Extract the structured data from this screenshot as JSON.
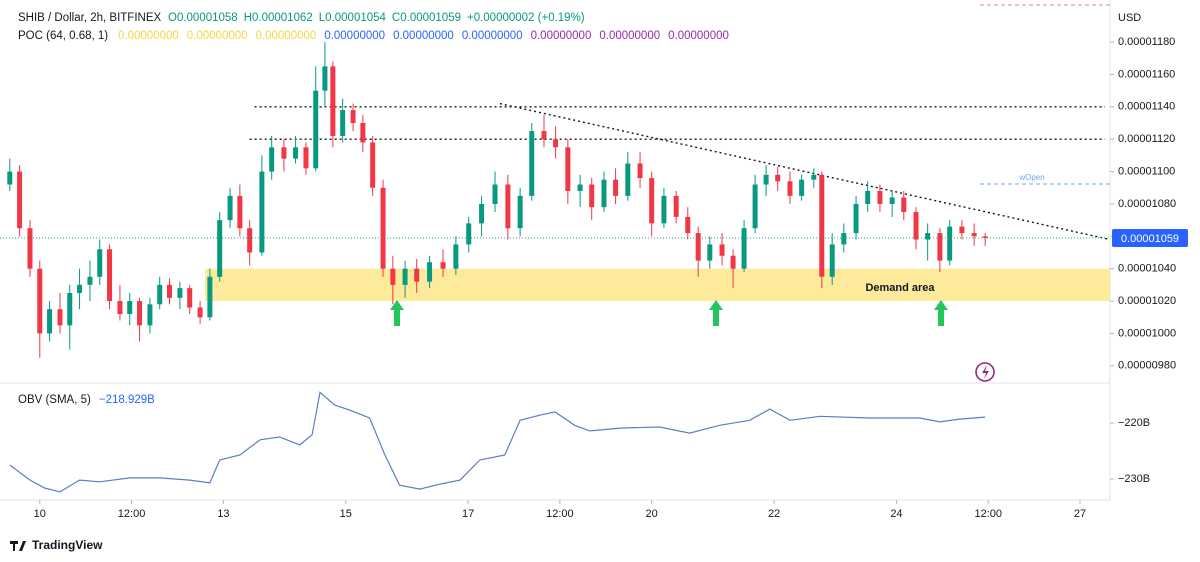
{
  "header": {
    "title": "SHIB / Dollar, 2h, BITFINEX",
    "ohlc": [
      "O0.00001058",
      "H0.00001062",
      "L0.00001054",
      "C0.00001059",
      "+0.00000002 (+0.19%)"
    ],
    "poc_title": "POC (64, 0.68, 1)",
    "poc_values": [
      {
        "text": "0.00000000",
        "color": "#f5d742"
      },
      {
        "text": "0.00000000",
        "color": "#f5d742"
      },
      {
        "text": "0.00000000",
        "color": "#f5d742"
      },
      {
        "text": "0.00000000",
        "color": "#2962ff"
      },
      {
        "text": "0.00000000",
        "color": "#2962ff"
      },
      {
        "text": "0.00000000",
        "color": "#2962ff"
      },
      {
        "text": "0.00000000",
        "color": "#9c27b0"
      },
      {
        "text": "0.00000000",
        "color": "#9c27b0"
      },
      {
        "text": "0.00000000",
        "color": "#9c27b0"
      }
    ],
    "currency": "USD",
    "wopen": "wOpen"
  },
  "footer": {
    "brand": "TradingView"
  },
  "chart_data": [
    {
      "type": "candlestick",
      "up_color": "#089981",
      "down_color": "#f23645",
      "x": [
        9.51,
        9.67,
        9.84,
        10,
        10.16,
        10.33,
        10.49,
        10.65,
        10.82,
        10.98,
        11.14,
        11.31,
        11.47,
        11.63,
        11.8,
        11.96,
        12.12,
        12.29,
        12.45,
        12.62,
        12.78,
        12.94,
        13.11,
        13.27,
        13.43,
        13.63,
        13.79,
        13.99,
        14.18,
        14.35,
        14.51,
        14.66,
        14.79,
        14.95,
        15.12,
        15.28,
        15.44,
        15.61,
        15.77,
        15.97,
        16.16,
        16.37,
        16.59,
        16.8,
        17.01,
        17.22,
        17.44,
        17.65,
        17.85,
        18.04,
        18.24,
        18.43,
        18.63,
        18.83,
        19.02,
        19.22,
        19.41,
        19.61,
        19.81,
        20,
        20.2,
        20.4,
        20.59,
        20.76,
        20.95,
        21.15,
        21.33,
        21.51,
        21.69,
        21.87,
        22.06,
        22.26,
        22.45,
        22.65,
        22.78,
        22.95,
        23.14,
        23.34,
        23.53,
        23.73,
        23.93,
        24.12,
        24.32,
        24.51,
        24.71,
        24.87,
        25.07,
        25.27,
        25.45
      ],
      "open": [
        1.092e-05,
        1.1e-05,
        1.065e-05,
        1.04e-05,
        1e-05,
        1.015e-05,
        1.005e-05,
        1.025e-05,
        1.03e-05,
        1.035e-05,
        1.052e-05,
        1.02e-05,
        1.012e-05,
        1.02e-05,
        1.005e-05,
        1.018e-05,
        1.03e-05,
        1.022e-05,
        1.028e-05,
        1.016e-05,
        1.01e-05,
        1.035e-05,
        1.07e-05,
        1.085e-05,
        1.065e-05,
        1.05e-05,
        1.1e-05,
        1.115e-05,
        1.108e-05,
        1.115e-05,
        1.102e-05,
        1.15e-05,
        1.165e-05,
        1.122e-05,
        1.138e-05,
        1.13e-05,
        1.118e-05,
        1.09e-05,
        1.04e-05,
        1.03e-05,
        1.04e-05,
        1.032e-05,
        1.044e-05,
        1.04e-05,
        1.055e-05,
        1.068e-05,
        1.08e-05,
        1.092e-05,
        1.065e-05,
        1.085e-05,
        1.125e-05,
        1.12e-05,
        1.115e-05,
        1.088e-05,
        1.092e-05,
        1.078e-05,
        1.095e-05,
        1.085e-05,
        1.105e-05,
        1.096e-05,
        1.068e-05,
        1.085e-05,
        1.072e-05,
        1.062e-05,
        1.045e-05,
        1.055e-05,
        1.048e-05,
        1.04e-05,
        1.065e-05,
        1.092e-05,
        1.098e-05,
        1.094e-05,
        1.085e-05,
        1.095e-05,
        1.098e-05,
        1.035e-05,
        1.055e-05,
        1.062e-05,
        1.08e-05,
        1.088e-05,
        1.08e-05,
        1.084e-05,
        1.075e-05,
        1.058e-05,
        1.062e-05,
        1.045e-05,
        1.066e-05,
        1.062e-05,
        1.06e-05
      ],
      "high": [
        1.108e-05,
        1.104e-05,
        1.07e-05,
        1.045e-05,
        1.02e-05,
        1.025e-05,
        1.03e-05,
        1.04e-05,
        1.045e-05,
        1.058e-05,
        1.055e-05,
        1.03e-05,
        1.025e-05,
        1.022e-05,
        1.022e-05,
        1.035e-05,
        1.034e-05,
        1.032e-05,
        1.03e-05,
        1.02e-05,
        1.04e-05,
        1.075e-05,
        1.09e-05,
        1.092e-05,
        1.07e-05,
        1.11e-05,
        1.122e-05,
        1.12e-05,
        1.122e-05,
        1.118e-05,
        1.165e-05,
        1.18e-05,
        1.168e-05,
        1.145e-05,
        1.142e-05,
        1.135e-05,
        1.122e-05,
        1.095e-05,
        1.048e-05,
        1.045e-05,
        1.046e-05,
        1.048e-05,
        1.052e-05,
        1.06e-05,
        1.072e-05,
        1.085e-05,
        1.1e-05,
        1.098e-05,
        1.09e-05,
        1.13e-05,
        1.135e-05,
        1.128e-05,
        1.12e-05,
        1.098e-05,
        1.096e-05,
        1.1e-05,
        1.102e-05,
        1.112e-05,
        1.112e-05,
        1.1e-05,
        1.09e-05,
        1.088e-05,
        1.078e-05,
        1.066e-05,
        1.06e-05,
        1.062e-05,
        1.052e-05,
        1.07e-05,
        1.098e-05,
        1.104e-05,
        1.103e-05,
        1.1e-05,
        1.098e-05,
        1.102e-05,
        1.1e-05,
        1.062e-05,
        1.068e-05,
        1.085e-05,
        1.094e-05,
        1.092e-05,
        1.088e-05,
        1.088e-05,
        1.078e-05,
        1.068e-05,
        1.065e-05,
        1.07e-05,
        1.07e-05,
        1.068e-05,
        1.062e-05
      ],
      "low": [
        1.088e-05,
        1.06e-05,
        1.035e-05,
        9.85e-06,
        9.95e-06,
        1e-05,
        9.9e-06,
        1.015e-05,
        1.02e-05,
        1.03e-05,
        1.015e-05,
        1.008e-05,
        1.005e-05,
        9.95e-06,
        1e-05,
        1.015e-05,
        1.018e-05,
        1.015e-05,
        1.012e-05,
        1.006e-05,
        1.008e-05,
        1.032e-05,
        1.065e-05,
        1.06e-05,
        1.042e-05,
        1.048e-05,
        1.095e-05,
        1.1e-05,
        1.105e-05,
        1.098e-05,
        1.1e-05,
        1.14e-05,
        1.115e-05,
        1.118e-05,
        1.125e-05,
        1.112e-05,
        1.085e-05,
        1.035e-05,
        1.018e-05,
        1.022e-05,
        1.025e-05,
        1.028e-05,
        1.035e-05,
        1.036e-05,
        1.05e-05,
        1.06e-05,
        1.075e-05,
        1.058e-05,
        1.06e-05,
        1.082e-05,
        1.115e-05,
        1.108e-05,
        1.08e-05,
        1.078e-05,
        1.07e-05,
        1.075e-05,
        1.08e-05,
        1.082e-05,
        1.09e-05,
        1.06e-05,
        1.065e-05,
        1.068e-05,
        1.058e-05,
        1.035e-05,
        1.04e-05,
        1.042e-05,
        1.028e-05,
        1.038e-05,
        1.062e-05,
        1.085e-05,
        1.088e-05,
        1.08e-05,
        1.082e-05,
        1.09e-05,
        1.028e-05,
        1.03e-05,
        1.05e-05,
        1.058e-05,
        1.075e-05,
        1.075e-05,
        1.072e-05,
        1.07e-05,
        1.052e-05,
        1.045e-05,
        1.038e-05,
        1.042e-05,
        1.058e-05,
        1.054e-05,
        1.054e-05
      ],
      "close": [
        1.1e-05,
        1.065e-05,
        1.04e-05,
        1e-05,
        1.015e-05,
        1.005e-05,
        1.025e-05,
        1.03e-05,
        1.035e-05,
        1.052e-05,
        1.02e-05,
        1.012e-05,
        1.02e-05,
        1.005e-05,
        1.018e-05,
        1.03e-05,
        1.022e-05,
        1.028e-05,
        1.016e-05,
        1.01e-05,
        1.035e-05,
        1.07e-05,
        1.085e-05,
        1.065e-05,
        1.05e-05,
        1.1e-05,
        1.115e-05,
        1.108e-05,
        1.115e-05,
        1.102e-05,
        1.15e-05,
        1.165e-05,
        1.122e-05,
        1.138e-05,
        1.13e-05,
        1.118e-05,
        1.09e-05,
        1.04e-05,
        1.03e-05,
        1.04e-05,
        1.032e-05,
        1.044e-05,
        1.04e-05,
        1.055e-05,
        1.068e-05,
        1.08e-05,
        1.092e-05,
        1.065e-05,
        1.085e-05,
        1.125e-05,
        1.12e-05,
        1.115e-05,
        1.088e-05,
        1.092e-05,
        1.078e-05,
        1.095e-05,
        1.085e-05,
        1.105e-05,
        1.096e-05,
        1.068e-05,
        1.085e-05,
        1.072e-05,
        1.062e-05,
        1.045e-05,
        1.055e-05,
        1.048e-05,
        1.04e-05,
        1.065e-05,
        1.092e-05,
        1.098e-05,
        1.094e-05,
        1.085e-05,
        1.095e-05,
        1.098e-05,
        1.035e-05,
        1.055e-05,
        1.062e-05,
        1.08e-05,
        1.088e-05,
        1.08e-05,
        1.084e-05,
        1.075e-05,
        1.058e-05,
        1.062e-05,
        1.045e-05,
        1.066e-05,
        1.062e-05,
        1.06e-05,
        1.059e-05
      ],
      "xlim": [
        9.35,
        27.49
      ],
      "xticks": [
        10,
        {
          "value": 11.5,
          "label": "12:00"
        },
        13,
        15,
        17,
        {
          "value": 18.5,
          "label": "12:00"
        },
        20,
        22,
        24,
        {
          "value": 25.5,
          "label": "12:00"
        },
        27
      ],
      "ylim": [
        9.7e-06,
        1.206e-05
      ],
      "yticks": [
        {
          "value": 9.8e-06,
          "label": "0.00000980"
        },
        {
          "value": 1e-05,
          "label": "0.00001000"
        },
        {
          "value": 1.02e-05,
          "label": "0.00001020"
        },
        {
          "value": 1.04e-05,
          "label": "0.00001040"
        },
        {
          "value": 1.06e-05,
          "label": "0.00001060"
        },
        {
          "value": 1.08e-05,
          "label": "0.00001080"
        },
        {
          "value": 1.1e-05,
          "label": "0.00001100"
        },
        {
          "value": 1.12e-05,
          "label": "0.00001120"
        },
        {
          "value": 1.14e-05,
          "label": "0.00001140"
        },
        {
          "value": 1.16e-05,
          "label": "0.00001160"
        },
        {
          "value": 1.18e-05,
          "label": "0.00001180"
        }
      ],
      "grid": false,
      "last_price": {
        "value": 1.059e-05,
        "label": "0.00001059"
      },
      "levels": [
        {
          "value": 1.14e-05,
          "start": 13.51
        },
        {
          "value": 1.12e-05,
          "start": 13.43
        }
      ],
      "trendline": {
        "x": [
          17.52,
          27.49
        ],
        "y": [
          1.142e-05,
          1.058e-05
        ]
      },
      "demand_area": {
        "label": "Demand area",
        "start": 12.7,
        "low": 1.02e-05,
        "high": 1.04e-05
      }
    },
    {
      "type": "line",
      "title": "OBV (SMA, 5)",
      "color": "#5b7fc4",
      "last_value": {
        "value": -218.929,
        "label": "−218.929B"
      },
      "x": [
        9.51,
        9.84,
        10.08,
        10.33,
        10.65,
        10.98,
        11.47,
        11.96,
        12.45,
        12.78,
        12.94,
        13.27,
        13.6,
        13.92,
        14.25,
        14.45,
        14.58,
        14.82,
        15.07,
        15.39,
        15.64,
        15.88,
        16.21,
        16.54,
        16.87,
        17.19,
        17.6,
        17.85,
        18.17,
        18.42,
        18.74,
        18.99,
        19.48,
        20.13,
        20.62,
        21.11,
        21.6,
        21.93,
        22.26,
        22.75,
        23.56,
        24.38,
        24.71,
        25.03,
        25.45
      ],
      "values": [
        -227.5,
        -230.2,
        -231.6,
        -232.3,
        -230.2,
        -230.5,
        -229.8,
        -229.8,
        -230.2,
        -230.7,
        -226.6,
        -225.7,
        -223,
        -222.5,
        -223.9,
        -222.1,
        -214.5,
        -216.8,
        -217.7,
        -219.1,
        -225.7,
        -231.1,
        -231.8,
        -230.9,
        -230.2,
        -226.6,
        -225.7,
        -219.5,
        -218.6,
        -218,
        -220.4,
        -221.4,
        -220.9,
        -220.7,
        -221.8,
        -220.4,
        -219.5,
        -217.5,
        -219.5,
        -218.8,
        -219.1,
        -219.1,
        -219.8,
        -219.3,
        -218.929
      ],
      "xlim": [
        9.35,
        27.49
      ],
      "ylim": [
        -233.75,
        -213.2
      ],
      "yticks": [
        {
          "value": -220,
          "label": "−220B"
        },
        {
          "value": -230,
          "label": "−230B"
        }
      ]
    }
  ]
}
